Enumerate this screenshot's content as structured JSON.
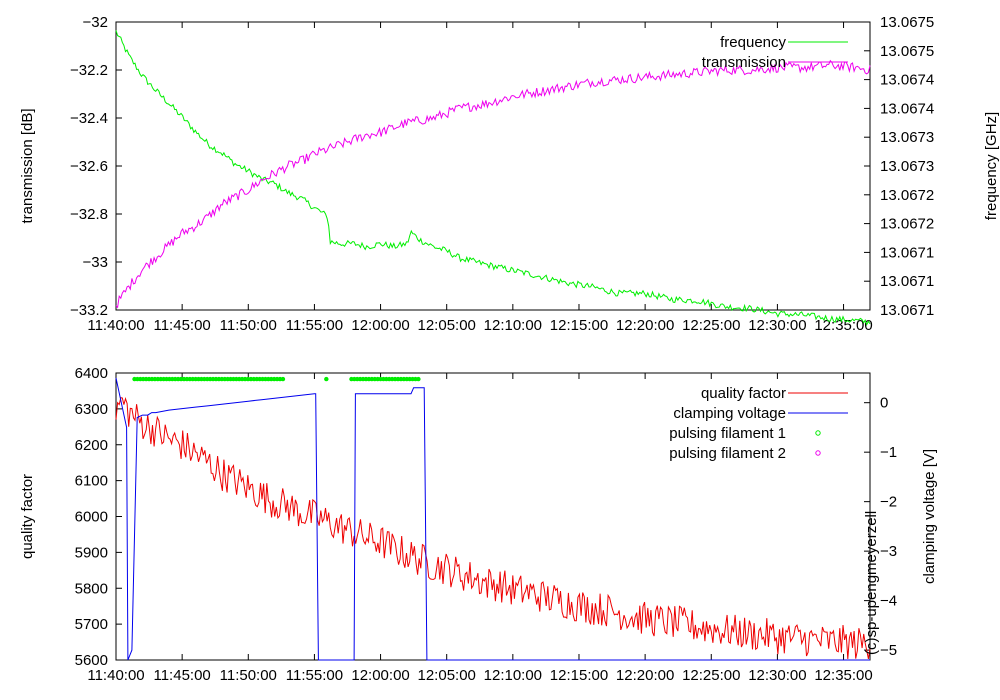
{
  "chart_data": [
    {
      "type": "line",
      "title": "",
      "xlabel": "",
      "ylabel": "transmission [dB]",
      "y2label": "frequency [GHz]",
      "x_ticks": [
        "11:40:00",
        "11:45:00",
        "11:50:00",
        "11:55:00",
        "12:00:00",
        "12:05:00",
        "12:10:00",
        "12:15:00",
        "12:20:00",
        "12:25:00",
        "12:30:00",
        "12:35:00"
      ],
      "x_range_minutes": [
        0,
        57
      ],
      "ylim": [
        -33.2,
        -32
      ],
      "y_ticks": [
        "-32",
        "-32.2",
        "-32.4",
        "-32.6",
        "-32.8",
        "-33",
        "-33.2"
      ],
      "y_tick_values": [
        -32,
        -32.2,
        -32.4,
        -32.6,
        -32.8,
        -33,
        -33.2
      ],
      "y2lim": [
        13.0671,
        13.0675
      ],
      "y2_ticks": [
        "13.0675",
        "13.0675",
        "13.0674",
        "13.0674",
        "13.0673",
        "13.0673",
        "13.0672",
        "13.0672",
        "13.0671",
        "13.0671",
        "13.0671"
      ],
      "legend": [
        "frequency",
        "transmission"
      ],
      "legend_position": "top-right",
      "colors": {
        "frequency": "#00ee00",
        "transmission": "#ee00ee"
      },
      "series": [
        {
          "name": "frequency",
          "axis": "y2",
          "x": [
            0,
            1,
            2,
            3,
            4,
            5,
            6,
            7,
            8,
            9,
            10,
            11,
            12,
            13,
            14,
            15,
            16,
            16.2,
            17,
            18,
            19,
            20,
            21,
            22,
            22.3,
            23,
            24,
            25,
            26,
            28,
            30,
            32,
            34,
            36,
            38,
            40,
            42,
            44,
            46,
            48,
            50,
            52,
            54,
            56,
            57
          ],
          "values": [
            13.067487,
            13.067452,
            13.067425,
            13.067405,
            13.067387,
            13.067368,
            13.067348,
            13.06733,
            13.067318,
            13.067303,
            13.067293,
            13.067282,
            13.067275,
            13.067263,
            13.067255,
            13.067242,
            13.06723,
            13.067195,
            13.067192,
            13.067192,
            13.067188,
            13.067192,
            13.067188,
            13.067192,
            13.067208,
            13.067197,
            13.067188,
            13.067182,
            13.067172,
            13.067163,
            13.067155,
            13.067147,
            13.067138,
            13.067132,
            13.067123,
            13.067123,
            13.067115,
            13.067113,
            13.067105,
            13.067102,
            13.067095,
            13.067093,
            13.067088,
            13.067085,
            13.067083
          ]
        },
        {
          "name": "transmission",
          "axis": "y",
          "x": [
            0,
            1,
            2,
            3,
            4,
            5,
            6,
            7,
            8,
            9,
            10,
            11,
            12,
            13,
            14,
            15,
            16,
            17,
            18,
            19,
            20,
            21,
            22,
            23,
            24,
            25,
            26,
            28,
            30,
            32,
            34,
            36,
            38,
            40,
            42,
            44,
            46,
            48,
            50,
            52,
            54,
            56,
            57
          ],
          "values": [
            -33.18,
            -33.1,
            -33.03,
            -32.98,
            -32.93,
            -32.88,
            -32.85,
            -32.81,
            -32.76,
            -32.73,
            -32.7,
            -32.66,
            -32.63,
            -32.6,
            -32.58,
            -32.55,
            -32.53,
            -32.51,
            -32.49,
            -32.47,
            -32.46,
            -32.44,
            -32.42,
            -32.41,
            -32.4,
            -32.38,
            -32.36,
            -32.34,
            -32.31,
            -32.29,
            -32.27,
            -32.25,
            -32.24,
            -32.23,
            -32.22,
            -32.21,
            -32.2,
            -32.2,
            -32.19,
            -32.19,
            -32.18,
            -32.19,
            -32.2
          ]
        }
      ]
    },
    {
      "type": "line",
      "title": "",
      "xlabel": "",
      "ylabel": "quality factor",
      "y2label": "clamping voltage [V]",
      "x_ticks": [
        "11:40:00",
        "11:45:00",
        "11:50:00",
        "11:55:00",
        "12:00:00",
        "12:05:00",
        "12:10:00",
        "12:15:00",
        "12:20:00",
        "12:25:00",
        "12:30:00",
        "12:35:00"
      ],
      "x_range_minutes": [
        0,
        57
      ],
      "ylim": [
        5600,
        6400
      ],
      "y_ticks": [
        "6400",
        "6300",
        "6200",
        "6100",
        "6000",
        "5900",
        "5800",
        "5700",
        "5600"
      ],
      "y_tick_values": [
        6400,
        6300,
        6200,
        6100,
        6000,
        5900,
        5800,
        5700,
        5600
      ],
      "y2lim": [
        -5.2,
        0.6
      ],
      "y2_ticks": [
        "0",
        "−1",
        "−2",
        "−3",
        "−4",
        "−5"
      ],
      "y2_tick_values": [
        0,
        -1,
        -2,
        -3,
        -4,
        -5
      ],
      "legend": [
        "quality factor",
        "clamping voltage",
        "pulsing filament 1",
        "pulsing filament 2"
      ],
      "legend_position": "top-right",
      "colors": {
        "quality factor": "#ee0000",
        "clamping voltage": "#0000ee",
        "pulsing filament 1": "#00ee00",
        "pulsing filament 2": "#ee00ee"
      },
      "watermark": "(c)sp-upengmeyerzell",
      "series": [
        {
          "name": "quality factor",
          "axis": "y",
          "x": [
            0,
            0.5,
            1,
            2,
            3,
            4,
            5,
            6,
            7,
            8,
            9,
            10,
            11,
            12,
            13,
            14,
            15,
            16,
            17,
            18,
            19,
            20,
            21,
            22,
            23,
            24,
            25,
            26,
            27,
            28,
            29,
            30,
            31,
            32,
            33,
            34,
            35,
            36,
            37,
            38,
            39,
            40,
            41,
            42,
            43,
            44,
            45,
            46,
            47,
            48,
            49,
            50,
            51,
            52,
            53,
            54,
            55,
            56,
            57
          ],
          "values": [
            6300,
            6320,
            6290,
            6260,
            6240,
            6215,
            6200,
            6175,
            6150,
            6120,
            6100,
            6080,
            6060,
            6040,
            6030,
            6010,
            6000,
            5985,
            5970,
            5955,
            5940,
            5930,
            5910,
            5895,
            5880,
            5865,
            5855,
            5840,
            5830,
            5815,
            5810,
            5795,
            5790,
            5780,
            5770,
            5762,
            5752,
            5745,
            5740,
            5732,
            5722,
            5715,
            5710,
            5705,
            5700,
            5692,
            5688,
            5682,
            5678,
            5672,
            5670,
            5664,
            5662,
            5658,
            5655,
            5650,
            5650,
            5645,
            5650
          ]
        },
        {
          "name": "clamping voltage",
          "axis": "y2",
          "x": [
            0,
            0.8,
            0.9,
            1.2,
            1.6,
            2,
            2.4,
            2.7,
            3,
            4,
            5,
            6,
            7,
            8,
            9,
            10,
            11,
            12,
            13,
            14,
            15,
            15.1,
            15.3,
            15.5,
            15.7,
            17.8,
            18,
            18.1,
            18.3,
            19,
            20,
            21,
            22,
            22.3,
            22.5,
            23.2,
            23.3,
            23.5,
            23.7,
            57
          ],
          "values": [
            0.5,
            -0.5,
            -5.2,
            -5.0,
            -0.3,
            -0.25,
            -0.25,
            -0.2,
            -0.2,
            -0.15,
            -0.12,
            -0.09,
            -0.06,
            -0.03,
            0.0,
            0.03,
            0.06,
            0.09,
            0.12,
            0.15,
            0.18,
            0.18,
            -5.2,
            -5.2,
            -5.2,
            -5.2,
            -5.2,
            0.18,
            0.18,
            0.18,
            0.18,
            0.18,
            0.18,
            0.18,
            0.3,
            0.3,
            0.3,
            -5.2,
            -5.2,
            -5.2
          ]
        },
        {
          "name": "pulsing filament 1",
          "axis": "overlay",
          "ranges_minutes": [
            [
              1.4,
              12.7
            ],
            [
              15.9,
              16.1
            ],
            [
              17.8,
              23.0
            ]
          ],
          "y_value": 6383
        },
        {
          "name": "pulsing filament 2",
          "axis": "overlay",
          "ranges_minutes": [],
          "y_value": 6383
        }
      ]
    }
  ]
}
